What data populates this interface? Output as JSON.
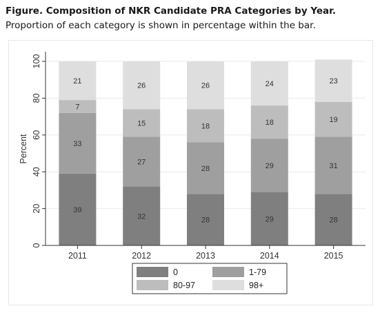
{
  "caption": {
    "bold": "Figure. Composition of NKR Candidate PRA Categories by Year.",
    "rest": " Proportion of each category is shown in percentage within the bar."
  },
  "chart_data": {
    "type": "bar",
    "stacked": true,
    "categories": [
      "2011",
      "2012",
      "2013",
      "2014",
      "2015"
    ],
    "series": [
      {
        "name": "0",
        "values": [
          39,
          32,
          28,
          29,
          28
        ],
        "color": "#7f7f7f"
      },
      {
        "name": "1-79",
        "values": [
          33,
          27,
          28,
          29,
          31
        ],
        "color": "#9f9f9f"
      },
      {
        "name": "80-97",
        "values": [
          7,
          15,
          18,
          18,
          19
        ],
        "color": "#bdbdbd"
      },
      {
        "name": "98+",
        "values": [
          21,
          26,
          26,
          24,
          23
        ],
        "color": "#dedede"
      }
    ],
    "ylabel": "Percent",
    "ylim": [
      0,
      100
    ],
    "yticks": [
      0,
      20,
      40,
      60,
      80,
      100
    ],
    "grid": true,
    "legend": "bottom"
  }
}
